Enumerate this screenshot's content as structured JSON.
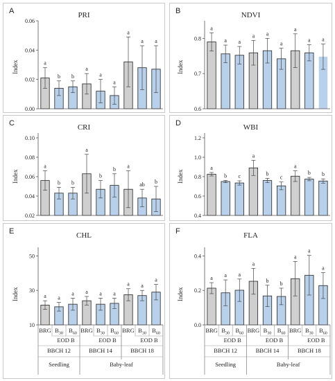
{
  "chart_data": [
    {
      "type": "bar",
      "letter": "A",
      "title": "PRI",
      "ylabel": "Index",
      "ylim": [
        0.0,
        0.06
      ],
      "yticks": [
        "0.00",
        "0.02",
        "0.04",
        "0.06"
      ],
      "values": [
        0.021,
        0.014,
        0.015,
        0.017,
        0.012,
        0.009,
        0.032,
        0.028,
        0.027
      ],
      "errors": [
        0.007,
        0.005,
        0.004,
        0.007,
        0.008,
        0.006,
        0.017,
        0.015,
        0.016
      ],
      "letters": [
        "a",
        "b",
        "b",
        "a",
        "a",
        "a",
        "a",
        "a",
        "a"
      ],
      "colors": [
        "#cfcfcf",
        "#b8d0ea",
        "#b8d0ea",
        "#cfcfcf",
        "#b8d0ea",
        "#b8d0ea",
        "#cfcfcf",
        "#b8d0ea",
        "#b8d0ea"
      ],
      "outlined": [
        true,
        true,
        true,
        true,
        true,
        true,
        true,
        true,
        true
      ]
    },
    {
      "type": "bar",
      "letter": "B",
      "title": "NDVI",
      "ylabel": "Index",
      "ylim": [
        0.6,
        0.85
      ],
      "yticks": [
        "0.6",
        "0.7",
        "0.8"
      ],
      "values": [
        0.79,
        0.756,
        0.752,
        0.759,
        0.765,
        0.742,
        0.765,
        0.759,
        0.748
      ],
      "errors": [
        0.026,
        0.025,
        0.025,
        0.035,
        0.035,
        0.03,
        0.048,
        0.023,
        0.036
      ],
      "letters": [
        "a",
        "a",
        "a",
        "a",
        "a",
        "a",
        "a",
        "a",
        "a"
      ],
      "colors": [
        "#cfcfcf",
        "#b8d0ea",
        "#b8d0ea",
        "#cfcfcf",
        "#b8d0ea",
        "#b8d0ea",
        "#cfcfcf",
        "#b8d0ea",
        "#b8d0ea"
      ],
      "outlined": [
        true,
        true,
        true,
        true,
        true,
        true,
        true,
        true,
        false
      ]
    },
    {
      "type": "bar",
      "letter": "C",
      "title": "CRI",
      "ylabel": "Index",
      "ylim": [
        0.02,
        0.105
      ],
      "yticks": [
        "0.02",
        "0.04",
        "0.06",
        "0.08",
        "0.10"
      ],
      "values": [
        0.056,
        0.043,
        0.043,
        0.063,
        0.047,
        0.051,
        0.047,
        0.038,
        0.037
      ],
      "errors": [
        0.01,
        0.006,
        0.006,
        0.02,
        0.009,
        0.012,
        0.019,
        0.009,
        0.013
      ],
      "letters": [
        "a",
        "b",
        "b",
        "a",
        "b",
        "b",
        "a",
        "ab",
        "b"
      ],
      "colors": [
        "#cfcfcf",
        "#b8d0ea",
        "#b8d0ea",
        "#cfcfcf",
        "#b8d0ea",
        "#b8d0ea",
        "#cfcfcf",
        "#b8d0ea",
        "#b8d0ea"
      ],
      "outlined": [
        true,
        true,
        true,
        true,
        true,
        true,
        true,
        true,
        true
      ]
    },
    {
      "type": "bar",
      "letter": "D",
      "title": "WBI",
      "ylabel": "Index",
      "ylim": [
        0.4,
        1.25
      ],
      "yticks": [
        "0.4",
        "0.6",
        "0.8",
        "1.0",
        "1.2"
      ],
      "values": [
        0.825,
        0.75,
        0.735,
        0.89,
        0.76,
        0.705,
        0.805,
        0.775,
        0.755
      ],
      "errors": [
        0.018,
        0.012,
        0.022,
        0.078,
        0.022,
        0.04,
        0.055,
        0.017,
        0.022
      ],
      "letters": [
        "a",
        "b",
        "c",
        "a",
        "b",
        "c",
        "a",
        "b",
        "b"
      ],
      "colors": [
        "#cfcfcf",
        "#b8d0ea",
        "#b8d0ea",
        "#cfcfcf",
        "#b8d0ea",
        "#b8d0ea",
        "#cfcfcf",
        "#b8d0ea",
        "#b8d0ea"
      ],
      "outlined": [
        true,
        true,
        true,
        true,
        true,
        true,
        true,
        true,
        true
      ]
    },
    {
      "type": "bar",
      "letter": "E",
      "title": "CHL",
      "ylabel": "Index",
      "ylim": [
        10,
        55
      ],
      "yticks": [
        "10",
        "30",
        "50"
      ],
      "values": [
        21.5,
        20.5,
        22,
        24,
        22,
        22.5,
        27.5,
        27,
        29
      ],
      "errors": [
        2.5,
        2.5,
        3.5,
        2.5,
        3.5,
        3,
        3.5,
        3,
        4.5
      ],
      "letters": [
        "a",
        "a",
        "a",
        "a",
        "a",
        "a",
        "a",
        "a",
        "a"
      ],
      "colors": [
        "#cfcfcf",
        "#b8d0ea",
        "#b8d0ea",
        "#cfcfcf",
        "#b8d0ea",
        "#b8d0ea",
        "#cfcfcf",
        "#b8d0ea",
        "#b8d0ea"
      ],
      "outlined": [
        true,
        true,
        true,
        true,
        true,
        true,
        true,
        true,
        true
      ]
    },
    {
      "type": "bar",
      "letter": "F",
      "title": "FLA",
      "ylabel": "Index",
      "ylim": [
        0.0,
        0.45
      ],
      "yticks": [
        "0.0",
        "0.2",
        "0.4"
      ],
      "values": [
        0.213,
        0.186,
        0.201,
        0.253,
        0.168,
        0.165,
        0.268,
        0.288,
        0.228
      ],
      "errors": [
        0.032,
        0.075,
        0.065,
        0.075,
        0.062,
        0.048,
        0.1,
        0.115,
        0.075
      ],
      "letters": [
        "a",
        "a",
        "a",
        "a",
        "b",
        "b",
        "a",
        "a",
        "a"
      ],
      "colors": [
        "#cfcfcf",
        "#b8d0ea",
        "#b8d0ea",
        "#cfcfcf",
        "#b8d0ea",
        "#b8d0ea",
        "#cfcfcf",
        "#b8d0ea",
        "#b8d0ea"
      ],
      "outlined": [
        true,
        true,
        true,
        true,
        true,
        true,
        true,
        true,
        true
      ]
    }
  ],
  "x_axis": {
    "treatments": [
      {
        "main": "BRG",
        "sub": ""
      },
      {
        "main": "B",
        "sub": "30"
      },
      {
        "main": "B",
        "sub": "60"
      }
    ],
    "eod_label": "EOD B",
    "stages": [
      "BBCH 12",
      "BBCH 14",
      "BBCH 18"
    ],
    "phases": [
      {
        "label": "Seedling",
        "groups": [
          0
        ]
      },
      {
        "label": "Baby-leaf",
        "groups": [
          1,
          2
        ]
      }
    ]
  }
}
